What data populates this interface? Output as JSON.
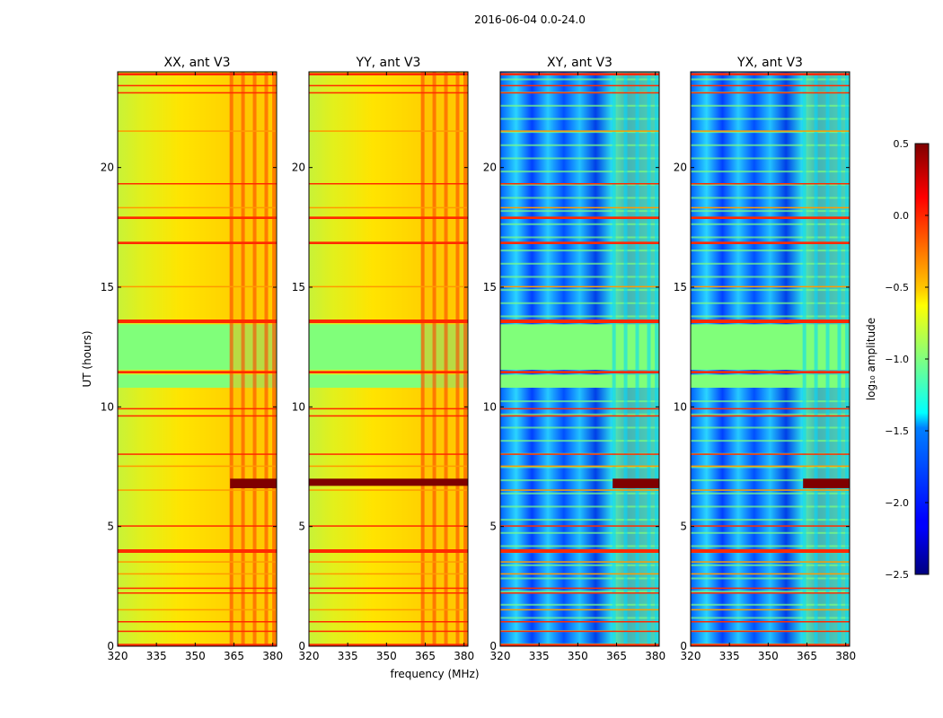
{
  "chart_data": {
    "type": "heatmap",
    "suptitle": "2016-06-04 0.0-24.0",
    "xlabel": "frequency (MHz)",
    "ylabel": "UT (hours)",
    "xlim": [
      320,
      381.5
    ],
    "ylim": [
      0,
      24
    ],
    "xticks": [
      "320",
      "335",
      "350",
      "365",
      "380"
    ],
    "yticks": [
      "0",
      "5",
      "10",
      "15",
      "20"
    ],
    "panels": [
      {
        "title": "XX, ant V3",
        "kind": "auto",
        "show_ylabel": true
      },
      {
        "title": "YY, ant V3",
        "kind": "auto",
        "show_ylabel": false
      },
      {
        "title": "XY, ant V3",
        "kind": "cross",
        "show_ylabel": false
      },
      {
        "title": "YX, ant V3",
        "kind": "cross",
        "show_ylabel": false
      }
    ],
    "colorbar": {
      "label": "log₁₀ amplitude",
      "range": [
        -2.5,
        0.5
      ],
      "ticks": [
        "0.5",
        "0.0",
        "−0.5",
        "−1.0",
        "−1.5",
        "−2.0",
        "−2.5"
      ],
      "colormap": "jet"
    },
    "time_bands": [
      {
        "from": 0.0,
        "to": 0.1,
        "level": "strong"
      },
      {
        "from": 0.6,
        "to": 0.65,
        "level": "strong"
      },
      {
        "from": 1.0,
        "to": 1.05,
        "level": "strong"
      },
      {
        "from": 1.5,
        "to": 1.55,
        "level": "medium"
      },
      {
        "from": 2.2,
        "to": 2.25,
        "level": "strong"
      },
      {
        "from": 2.4,
        "to": 2.45,
        "level": "strong"
      },
      {
        "from": 3.0,
        "to": 3.05,
        "level": "medium"
      },
      {
        "from": 3.5,
        "to": 3.55,
        "level": "medium"
      },
      {
        "from": 3.9,
        "to": 4.05,
        "level": "strong"
      },
      {
        "from": 5.0,
        "to": 5.05,
        "level": "strong"
      },
      {
        "from": 6.5,
        "to": 6.55,
        "level": "medium"
      },
      {
        "from": 7.5,
        "to": 7.55,
        "level": "medium"
      },
      {
        "from": 8.0,
        "to": 8.05,
        "level": "strong"
      },
      {
        "from": 9.6,
        "to": 9.65,
        "level": "strong"
      },
      {
        "from": 9.9,
        "to": 9.95,
        "level": "strong"
      },
      {
        "from": 11.4,
        "to": 11.5,
        "level": "strong"
      },
      {
        "from": 13.5,
        "to": 13.65,
        "level": "strong"
      },
      {
        "from": 15.0,
        "to": 15.05,
        "level": "medium"
      },
      {
        "from": 16.8,
        "to": 16.9,
        "level": "strong"
      },
      {
        "from": 17.85,
        "to": 17.95,
        "level": "strong"
      },
      {
        "from": 18.3,
        "to": 18.35,
        "level": "medium"
      },
      {
        "from": 19.3,
        "to": 19.35,
        "level": "strong"
      },
      {
        "from": 21.5,
        "to": 21.55,
        "level": "medium"
      },
      {
        "from": 23.1,
        "to": 23.15,
        "level": "strong"
      },
      {
        "from": 23.4,
        "to": 23.45,
        "level": "strong"
      },
      {
        "from": 23.85,
        "to": 23.95,
        "level": "strong"
      }
    ],
    "flat_gaps": [
      {
        "from": 10.8,
        "to": 11.35
      },
      {
        "from": 11.55,
        "to": 13.45
      }
    ],
    "saturation_events": [
      {
        "from": 6.6,
        "to": 7.0,
        "freq_from": 363.5,
        "freq_to": 381.5,
        "panels": [
          0,
          2,
          3
        ]
      },
      {
        "from": 6.7,
        "to": 7.0,
        "freq_from": 320,
        "freq_to": 381.5,
        "panels": [
          1
        ]
      }
    ],
    "rfi_channels_mhz": [
      364,
      368.5,
      373,
      377.5,
      380.5
    ]
  }
}
